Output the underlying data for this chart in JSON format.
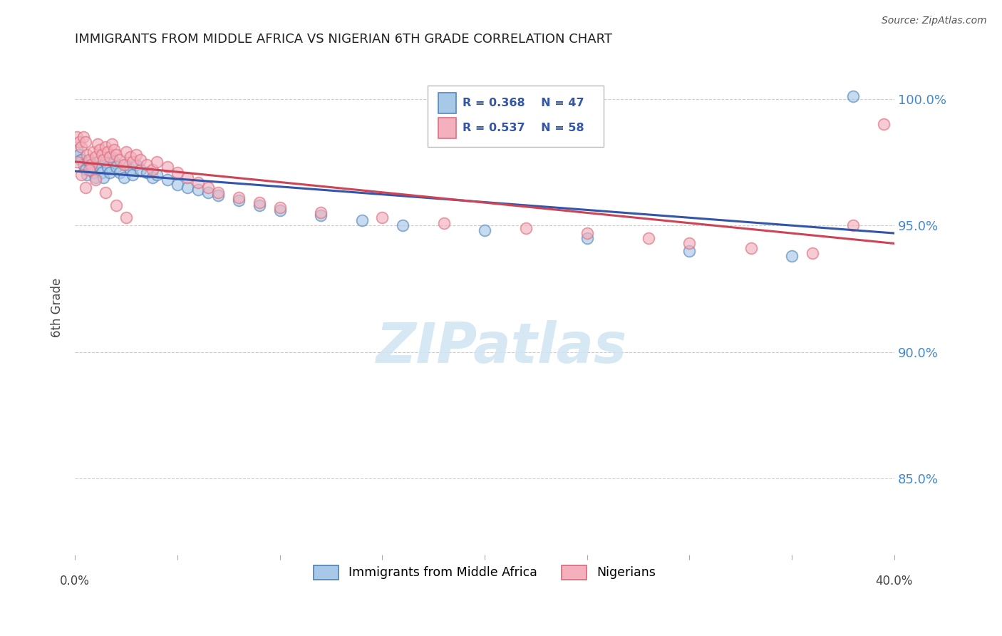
{
  "title": "IMMIGRANTS FROM MIDDLE AFRICA VS NIGERIAN 6TH GRADE CORRELATION CHART",
  "source": "Source: ZipAtlas.com",
  "ylabel": "6th Grade",
  "xlim": [
    0.0,
    0.4
  ],
  "ylim": [
    0.82,
    1.015
  ],
  "ytick_values": [
    0.85,
    0.9,
    0.95,
    1.0
  ],
  "legend_blue_label": "Immigrants from Middle Africa",
  "legend_pink_label": "Nigerians",
  "R_blue": 0.368,
  "N_blue": 47,
  "R_pink": 0.537,
  "N_pink": 58,
  "blue_face": "#a8c8e8",
  "blue_edge": "#5588bb",
  "pink_face": "#f4b0bc",
  "pink_edge": "#dd7080",
  "line_blue": "#3355aa",
  "line_pink": "#cc4455",
  "legend_box_color": "#e8f0f8",
  "legend_box_edge": "#8899bb",
  "legend_text_color": "#3355aa",
  "right_axis_color": "#4488cc",
  "watermark_color": "#d0e4f4",
  "background_color": "#ffffff",
  "grid_color": "#cccccc",
  "blue_scatter_x": [
    0.001,
    0.002,
    0.003,
    0.004,
    0.005,
    0.006,
    0.007,
    0.008,
    0.009,
    0.01,
    0.011,
    0.012,
    0.013,
    0.014,
    0.015,
    0.016,
    0.017,
    0.018,
    0.019,
    0.02,
    0.022,
    0.024,
    0.025,
    0.027,
    0.028,
    0.03,
    0.032,
    0.035,
    0.038,
    0.04,
    0.045,
    0.05,
    0.055,
    0.06,
    0.065,
    0.07,
    0.08,
    0.09,
    0.1,
    0.12,
    0.14,
    0.16,
    0.2,
    0.25,
    0.3,
    0.35,
    0.38
  ],
  "blue_scatter_y": [
    0.98,
    0.978,
    0.976,
    0.974,
    0.972,
    0.97,
    0.975,
    0.973,
    0.971,
    0.969,
    0.975,
    0.973,
    0.971,
    0.969,
    0.975,
    0.973,
    0.971,
    0.977,
    0.975,
    0.973,
    0.971,
    0.969,
    0.974,
    0.972,
    0.97,
    0.974,
    0.972,
    0.971,
    0.969,
    0.97,
    0.968,
    0.966,
    0.965,
    0.964,
    0.963,
    0.962,
    0.96,
    0.958,
    0.956,
    0.954,
    0.952,
    0.95,
    0.948,
    0.945,
    0.94,
    0.938,
    1.001
  ],
  "pink_scatter_x": [
    0.001,
    0.002,
    0.003,
    0.004,
    0.005,
    0.006,
    0.007,
    0.008,
    0.009,
    0.01,
    0.011,
    0.012,
    0.013,
    0.014,
    0.015,
    0.016,
    0.017,
    0.018,
    0.019,
    0.02,
    0.022,
    0.024,
    0.025,
    0.027,
    0.028,
    0.03,
    0.032,
    0.035,
    0.038,
    0.04,
    0.045,
    0.05,
    0.055,
    0.06,
    0.065,
    0.07,
    0.08,
    0.09,
    0.1,
    0.12,
    0.15,
    0.18,
    0.22,
    0.25,
    0.28,
    0.3,
    0.33,
    0.36,
    0.38,
    0.395,
    0.001,
    0.003,
    0.005,
    0.007,
    0.01,
    0.015,
    0.02,
    0.025
  ],
  "pink_scatter_y": [
    0.985,
    0.983,
    0.981,
    0.985,
    0.983,
    0.978,
    0.976,
    0.974,
    0.979,
    0.977,
    0.982,
    0.98,
    0.978,
    0.976,
    0.981,
    0.979,
    0.977,
    0.982,
    0.98,
    0.978,
    0.976,
    0.974,
    0.979,
    0.977,
    0.975,
    0.978,
    0.976,
    0.974,
    0.972,
    0.975,
    0.973,
    0.971,
    0.969,
    0.967,
    0.965,
    0.963,
    0.961,
    0.959,
    0.957,
    0.955,
    0.953,
    0.951,
    0.949,
    0.947,
    0.945,
    0.943,
    0.941,
    0.939,
    0.95,
    0.99,
    0.975,
    0.97,
    0.965,
    0.972,
    0.968,
    0.963,
    0.958,
    0.953
  ]
}
